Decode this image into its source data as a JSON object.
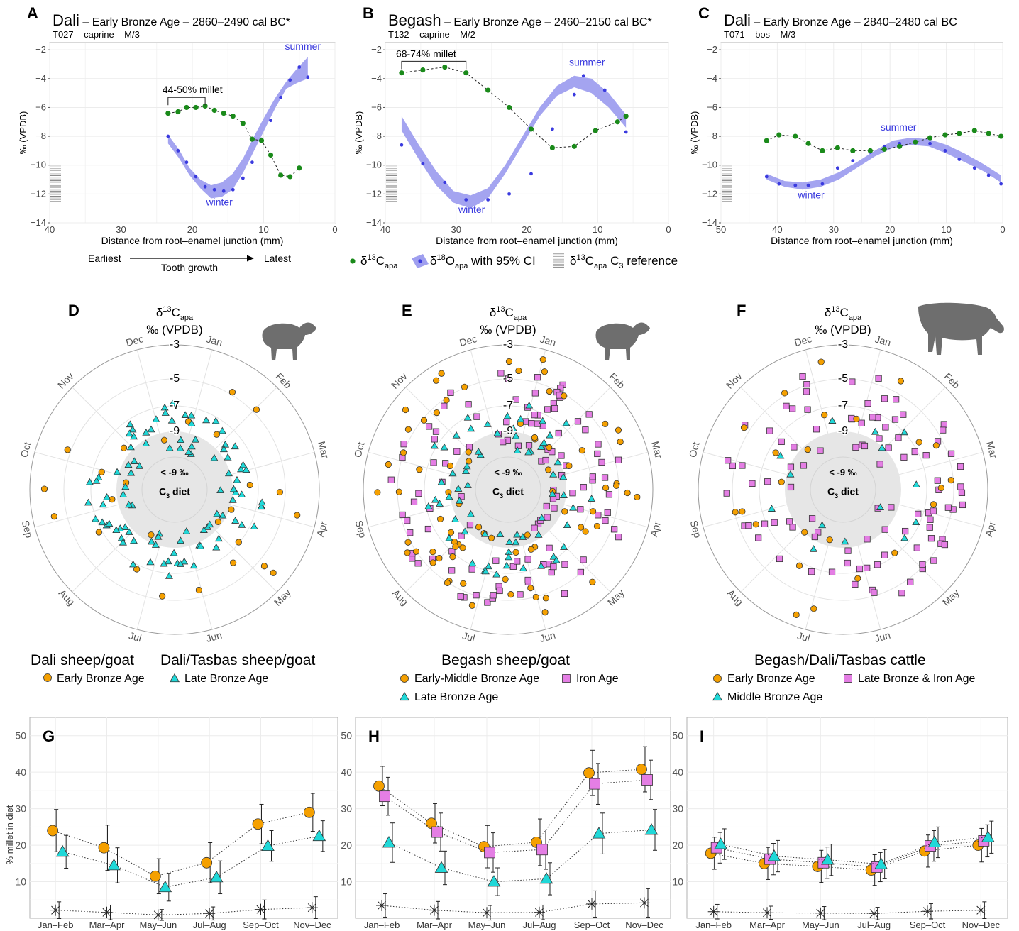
{
  "colors": {
    "carbon": "#1a8a1a",
    "oxygen": "#3a3adf",
    "oxygen_band": "#9f9fef",
    "ref": "#888888",
    "early": "#f5a000",
    "late": "#20d8d8",
    "iron": "#e47ee4",
    "c3_disc": "#e6e6e6",
    "mark_stroke": "#333333"
  },
  "panelsABC": [
    {
      "letter": "A",
      "site": "Dali",
      "period": "Early Bronze Age",
      "dates": "2860–2490 cal BC*",
      "sub": "T027  –  caprine  –  M/3",
      "xlim": [
        40,
        0
      ],
      "xticks": [
        40,
        30,
        20,
        10,
        0
      ],
      "ylim": [
        -14,
        -1.5
      ],
      "yticks": [
        -14,
        -12,
        -10,
        -8,
        -6,
        -4,
        -2
      ],
      "xlabel": "Distance from root–enamel junction (mm)",
      "ylabel": "‰ (VPDB)",
      "carbon": [
        [
          23.4,
          -6.4
        ],
        [
          22,
          -6.3
        ],
        [
          20.8,
          -6.0
        ],
        [
          19.5,
          -6.0
        ],
        [
          18.2,
          -5.9
        ],
        [
          16.9,
          -6.2
        ],
        [
          15.6,
          -6.4
        ],
        [
          14.3,
          -6.6
        ],
        [
          12.9,
          -7.1
        ],
        [
          11.6,
          -8.2
        ],
        [
          10.3,
          -8.3
        ],
        [
          9.0,
          -9.3
        ],
        [
          7.6,
          -10.7
        ],
        [
          6.3,
          -10.8
        ],
        [
          5.0,
          -10.2
        ]
      ],
      "oxygen": [
        [
          23.4,
          -8.0
        ],
        [
          22,
          -9.0
        ],
        [
          20.8,
          -9.8
        ],
        [
          19.5,
          -10.8
        ],
        [
          18.2,
          -11.5
        ],
        [
          16.9,
          -11.7
        ],
        [
          15.6,
          -11.8
        ],
        [
          14.3,
          -11.7
        ],
        [
          12.9,
          -10.9
        ],
        [
          11.6,
          -9.8
        ],
        [
          10.3,
          -8.2
        ],
        [
          9.0,
          -6.9
        ],
        [
          7.6,
          -5.3
        ],
        [
          6.3,
          -4.1
        ],
        [
          5.0,
          -3.2
        ],
        [
          3.8,
          -3.9
        ]
      ],
      "band": {
        "x0": 23.4,
        "x1": 3.8,
        "lower": [
          -8.5,
          -9.5,
          -10.7,
          -11.6,
          -12.3,
          -12.2,
          -11.7,
          -10.5,
          -9.0,
          -7.5,
          -6.0,
          -4.7,
          -4.3,
          -4.0
        ],
        "upper": [
          -7.9,
          -8.9,
          -10.2,
          -11.0,
          -11.4,
          -11.2,
          -10.6,
          -9.5,
          -8.0,
          -6.6,
          -5.3,
          -4.2,
          -3.3,
          -2.5
        ]
      },
      "ann": {
        "text": "44-50% millet",
        "x0": 23.4,
        "x1": 18.2,
        "y": -5.3
      },
      "summer": {
        "text": "summer",
        "x": 4.5,
        "y": -2.0
      },
      "winter": {
        "text": "winter",
        "x": 16.2,
        "y": -12.8
      }
    },
    {
      "letter": "B",
      "site": "Begash",
      "period": "Early Bronze Age",
      "dates": "2460–2150 cal BC*",
      "sub": "T132  –  caprine  –  M/2",
      "xlim": [
        40,
        0
      ],
      "xticks": [
        40,
        30,
        20,
        10,
        0
      ],
      "ylim": [
        -14,
        -1.5
      ],
      "yticks": [
        -14,
        -12,
        -10,
        -8,
        -6,
        -4,
        -2
      ],
      "xlabel": "Distance from root–enamel junction (mm)",
      "ylabel": "‰ (VPDB)",
      "carbon": [
        [
          37.7,
          -3.6
        ],
        [
          34.7,
          -3.4
        ],
        [
          31.6,
          -3.2
        ],
        [
          28.6,
          -3.6
        ],
        [
          25.5,
          -4.8
        ],
        [
          22.5,
          -6.0
        ],
        [
          19.4,
          -7.5
        ],
        [
          16.4,
          -8.8
        ],
        [
          13.3,
          -8.7
        ],
        [
          10.3,
          -7.6
        ],
        [
          7.2,
          -7.0
        ],
        [
          6.0,
          -6.6
        ]
      ],
      "oxygen": [
        [
          37.7,
          -8.6
        ],
        [
          34.7,
          -9.9
        ],
        [
          31.6,
          -11.2
        ],
        [
          28.6,
          -12.4
        ],
        [
          25.5,
          -12.4
        ],
        [
          22.5,
          -12.0
        ],
        [
          19.4,
          -10.6
        ],
        [
          16.4,
          -7.5
        ],
        [
          13.3,
          -5.1
        ],
        [
          12.0,
          -3.8
        ],
        [
          9.0,
          -4.8
        ],
        [
          6.0,
          -7.7
        ]
      ],
      "band": {
        "x0": 37.7,
        "x1": 6.0,
        "lower": [
          -7.6,
          -9.6,
          -11.4,
          -12.6,
          -13.0,
          -12.3,
          -10.6,
          -8.6,
          -6.6,
          -5.2,
          -4.6,
          -5.0,
          -6.0,
          -7.4
        ],
        "upper": [
          -6.6,
          -8.6,
          -10.4,
          -11.8,
          -12.1,
          -11.6,
          -10.0,
          -8.0,
          -6.0,
          -4.5,
          -3.8,
          -4.0,
          -5.0,
          -6.5
        ]
      },
      "ann": {
        "text": "68-74% millet",
        "x0": 37.7,
        "x1": 28.6,
        "y": -2.8
      },
      "summer": {
        "text": "summer",
        "x": 11.5,
        "y": -3.1
      },
      "winter": {
        "text": "winter",
        "x": 27.8,
        "y": -13.3
      }
    },
    {
      "letter": "C",
      "site": "Dali",
      "period": "Early Bronze Age",
      "dates": "2840–2480 cal BC",
      "sub": "T071  –  bos  –  M/3",
      "xlim": [
        50,
        0
      ],
      "xticks": [
        50,
        40,
        30,
        20,
        10,
        0
      ],
      "ylim": [
        -14,
        -1.5
      ],
      "yticks": [
        -14,
        -12,
        -10,
        -8,
        -6,
        -4,
        -2
      ],
      "xlabel": "Distance from root–enamel junction (mm)",
      "ylabel": "‰ (VPDB)",
      "carbon": [
        [
          41.9,
          -8.3
        ],
        [
          39.7,
          -7.9
        ],
        [
          36.8,
          -8.0
        ],
        [
          34.5,
          -8.5
        ],
        [
          32.0,
          -9.0
        ],
        [
          29.3,
          -8.8
        ],
        [
          26.6,
          -9.0
        ],
        [
          23.5,
          -9.0
        ],
        [
          21.0,
          -8.9
        ],
        [
          18.3,
          -8.7
        ],
        [
          15.5,
          -8.4
        ],
        [
          12.9,
          -8.1
        ],
        [
          10.2,
          -7.9
        ],
        [
          7.7,
          -7.8
        ],
        [
          5.0,
          -7.6
        ],
        [
          2.5,
          -7.8
        ],
        [
          0.3,
          -8.0
        ]
      ],
      "oxygen": [
        [
          41.9,
          -10.8
        ],
        [
          39.7,
          -11.3
        ],
        [
          36.8,
          -11.4
        ],
        [
          34.5,
          -11.4
        ],
        [
          32.0,
          -11.3
        ],
        [
          29.3,
          -10.2
        ],
        [
          26.6,
          -9.7
        ],
        [
          23.5,
          -9.1
        ],
        [
          21.0,
          -8.7
        ],
        [
          18.3,
          -8.5
        ],
        [
          15.5,
          -8.4
        ],
        [
          12.9,
          -8.5
        ],
        [
          10.2,
          -9.0
        ],
        [
          7.7,
          -9.6
        ],
        [
          5.0,
          -10.2
        ],
        [
          2.5,
          -10.7
        ],
        [
          0.3,
          -11.3
        ]
      ],
      "band": {
        "x0": 41.9,
        "x1": 0.3,
        "lower": [
          -11.0,
          -11.5,
          -11.7,
          -11.5,
          -11.0,
          -10.2,
          -9.4,
          -8.8,
          -8.6,
          -8.7,
          -9.2,
          -9.8,
          -10.4,
          -11.2
        ],
        "upper": [
          -10.6,
          -11.1,
          -11.2,
          -11.0,
          -10.5,
          -9.8,
          -9.0,
          -8.3,
          -8.1,
          -8.2,
          -8.6,
          -9.2,
          -9.9,
          -10.7
        ]
      },
      "ann": null,
      "summer": {
        "text": "summer",
        "x": 18.5,
        "y": -7.6
      },
      "winter": {
        "text": "winter",
        "x": 34.0,
        "y": -12.3
      }
    }
  ],
  "growth": {
    "earliest": "Earliest",
    "latest": "Latest",
    "tooth": "Tooth growth"
  },
  "legend_top": {
    "carbon": {
      "prefix": "δ",
      "sup": "13",
      "main": "C",
      "sub": "apa",
      "rest": ""
    },
    "oxygen": {
      "prefix": "δ",
      "sup": "18",
      "main": "O",
      "sub": "apa",
      "rest": " with 95% CI"
    },
    "ref": {
      "prefix": "δ",
      "sup": "13",
      "main": "C",
      "sub": "apa",
      "rest": " C",
      "sub2": "3",
      "rest2": " reference"
    }
  },
  "polar_common": {
    "months": [
      "Jan",
      "Feb",
      "Mar",
      "Apr",
      "May",
      "Jun",
      "Jul",
      "Aug",
      "Sep",
      "Oct",
      "Nov",
      "Dec"
    ],
    "rings": [
      "-3",
      "-5",
      "-7",
      "-9"
    ],
    "title1": {
      "prefix": "δ",
      "sup": "13",
      "main": "C",
      "sub": "apa"
    },
    "title2": "‰ (VPDB)",
    "center1": "< -9 ‰",
    "center2": {
      "main": "C",
      "sub": "3",
      "rest": " diet"
    }
  },
  "polarDEF": [
    {
      "letter": "D",
      "animal": "sheep",
      "seed": 11,
      "early": 26,
      "late": 98,
      "iron": 0,
      "legend_title1": "Dali sheep/goat",
      "legend_title2": "Dali/Tasbas sheep/goat",
      "legend": [
        {
          "shape": "circle",
          "label": "Early Bronze Age"
        },
        {
          "shape": "triangle",
          "label": "Late Bronze Age"
        }
      ]
    },
    {
      "letter": "E",
      "animal": "sheep",
      "seed": 23,
      "early": 76,
      "late": 66,
      "iron": 118,
      "legend_title1": "Begash sheep/goat",
      "legend_title2": "",
      "legend": [
        {
          "shape": "circle",
          "label": "Early-Middle Bronze Age"
        },
        {
          "shape": "square",
          "label": "Iron Age"
        },
        {
          "shape": "triangle",
          "label": "Late Bronze Age"
        }
      ]
    },
    {
      "letter": "F",
      "animal": "cow",
      "seed": 37,
      "early": 24,
      "late": 14,
      "iron": 98,
      "legend_title1": "Begash/Dali/Tasbas cattle",
      "legend_title2": "",
      "legend": [
        {
          "shape": "circle",
          "label": "Early Bronze Age"
        },
        {
          "shape": "square",
          "label": "Late Bronze & Iron Age"
        },
        {
          "shape": "triangle",
          "label": "Middle Bronze Age"
        }
      ]
    }
  ],
  "chart_data": [
    {
      "type": "line",
      "panel": "G",
      "categories": [
        "Jan–Feb",
        "Mar–Apr",
        "May–Jun",
        "Jul–Aug",
        "Sep–Oct",
        "Nov–Dec"
      ],
      "ylabel": "% millet in diet",
      "ylim": [
        0,
        55
      ],
      "yticks": [
        10,
        20,
        30,
        40,
        50
      ],
      "series": [
        {
          "shape": "circle",
          "values": [
            24,
            19.3,
            11.5,
            15.2,
            25.8,
            29
          ],
          "err": [
            5.8,
            6.2,
            4.8,
            5.5,
            5.4,
            5.2
          ]
        },
        {
          "shape": "triangle",
          "values": [
            18.2,
            14.5,
            8.5,
            11.2,
            19.8,
            22.5
          ],
          "err": [
            4.5,
            4.8,
            3.8,
            4.5,
            4.2,
            4.2
          ]
        },
        {
          "shape": "star",
          "values": [
            2.2,
            1.6,
            0.9,
            1.3,
            2.4,
            2.9
          ],
          "err": [
            2.3,
            2.0,
            1.5,
            1.8,
            2.6,
            3.0
          ]
        }
      ]
    },
    {
      "type": "line",
      "panel": "H",
      "categories": [
        "Jan–Feb",
        "Mar–Apr",
        "May–Jun",
        "Jul–Aug",
        "Sep–Oct",
        "Nov–Dec"
      ],
      "ylabel": "",
      "ylim": [
        0,
        55
      ],
      "yticks": [
        10,
        20,
        30,
        40,
        50
      ],
      "series": [
        {
          "shape": "circle",
          "values": [
            36.2,
            26,
            19.6,
            20.8,
            39.8,
            40.8
          ],
          "err": [
            5.4,
            5.4,
            5.8,
            6.4,
            6.2,
            6.2
          ]
        },
        {
          "shape": "square",
          "values": [
            33.4,
            23.6,
            18,
            18.8,
            36.8,
            37.9
          ],
          "err": [
            5.2,
            5.2,
            5.4,
            5.4,
            5.6,
            5.4
          ]
        },
        {
          "shape": "triangle",
          "values": [
            20.7,
            13.8,
            10,
            10.8,
            23.2,
            24.2
          ],
          "err": [
            5.4,
            4.6,
            3.8,
            4.4,
            5.6,
            5.6
          ]
        },
        {
          "shape": "star",
          "values": [
            3.5,
            2.2,
            1.5,
            1.6,
            3.9,
            4.2
          ],
          "err": [
            3.2,
            2.4,
            2.0,
            2.0,
            3.6,
            3.9
          ]
        }
      ]
    },
    {
      "type": "line",
      "panel": "I",
      "categories": [
        "Jan–Feb",
        "Mar–Apr",
        "May–Jun",
        "Jul–Aug",
        "Sep–Oct",
        "Nov–Dec"
      ],
      "ylabel": "",
      "ylim": [
        0,
        55
      ],
      "yticks": [
        10,
        20,
        30,
        40,
        50
      ],
      "series": [
        {
          "shape": "circle",
          "values": [
            17.8,
            15,
            14.2,
            13.2,
            18.4,
            20
          ],
          "err": [
            4.4,
            4.4,
            4.4,
            4.2,
            4.4,
            4.6
          ]
        },
        {
          "shape": "square",
          "values": [
            19.3,
            16.2,
            15.2,
            14,
            19.8,
            21.2
          ],
          "err": [
            4.2,
            4.3,
            4.3,
            4.0,
            4.2,
            4.4
          ]
        },
        {
          "shape": "triangle",
          "values": [
            20.3,
            17,
            16,
            14.8,
            20.8,
            22.2
          ],
          "err": [
            4.2,
            4.3,
            4.3,
            4.0,
            4.2,
            4.4
          ]
        },
        {
          "shape": "star",
          "values": [
            1.8,
            1.5,
            1.4,
            1.3,
            1.9,
            2.2
          ],
          "err": [
            2.0,
            1.8,
            1.8,
            1.7,
            2.1,
            2.3
          ]
        }
      ]
    }
  ]
}
